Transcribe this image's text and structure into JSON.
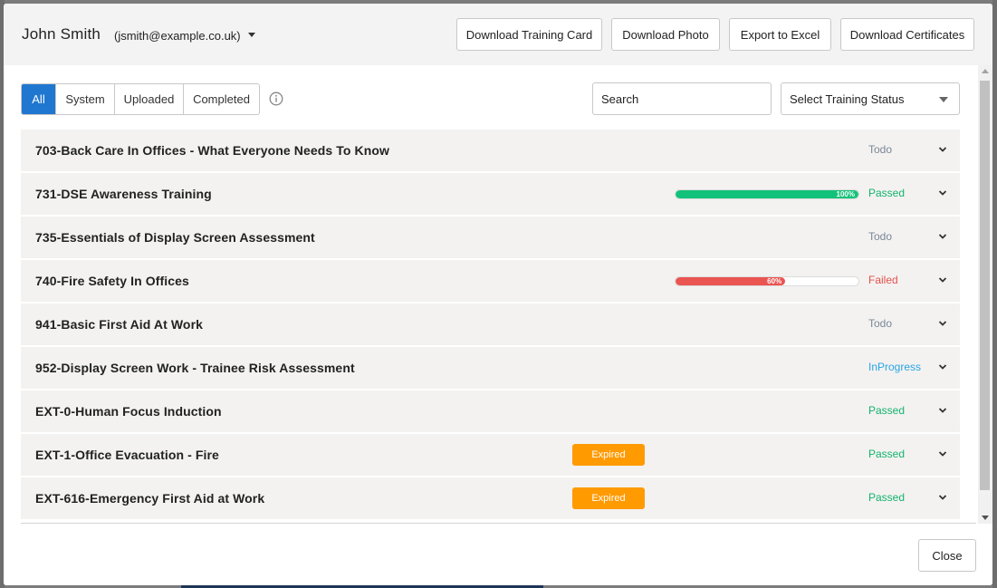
{
  "user": {
    "name": "John Smith",
    "email": "(jsmith@example.co.uk)"
  },
  "header_buttons": {
    "training_card": "Download Training Card",
    "photo": "Download Photo",
    "excel": "Export to Excel",
    "certificates": "Download Certificates"
  },
  "filters": {
    "all": "All",
    "system": "System",
    "uploaded": "Uploaded",
    "completed": "Completed",
    "active": "All"
  },
  "search": {
    "placeholder": "Search"
  },
  "status_select": {
    "label": "Select Training Status"
  },
  "status_colors": {
    "Todo": "#7a8795",
    "Passed": "#13b36c",
    "Failed": "#e4514d",
    "InProgress": "#2aa5e4"
  },
  "accent_color": "#1f77d0",
  "trainings": [
    {
      "title": "703-Back Care In Offices - What Everyone Needs To Know",
      "status": "Todo"
    },
    {
      "title": "731-DSE Awareness Training",
      "status": "Passed",
      "progress_percent": 100,
      "progress_label": "100%",
      "progress_color": "#13c27a"
    },
    {
      "title": "735-Essentials of Display Screen Assessment",
      "status": "Todo"
    },
    {
      "title": "740-Fire Safety In Offices",
      "status": "Failed",
      "progress_percent": 60,
      "progress_label": "60%",
      "progress_color": "#ea5451"
    },
    {
      "title": "941-Basic First Aid At Work",
      "status": "Todo"
    },
    {
      "title": "952-Display Screen Work - Trainee Risk Assessment",
      "status": "InProgress"
    },
    {
      "title": "EXT-0-Human Focus Induction",
      "status": "Passed"
    },
    {
      "title": "EXT-1-Office Evacuation - Fire",
      "status": "Passed",
      "badge": "Expired"
    },
    {
      "title": "EXT-616-Emergency First Aid at Work",
      "status": "Passed",
      "badge": "Expired"
    }
  ],
  "footer": {
    "close": "Close"
  }
}
